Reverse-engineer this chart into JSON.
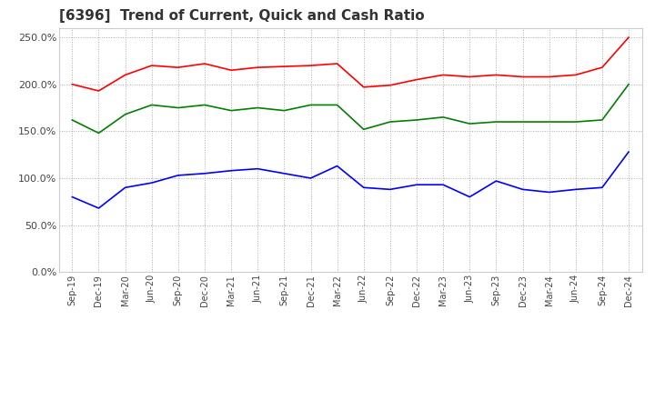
{
  "title": "[6396]  Trend of Current, Quick and Cash Ratio",
  "x_labels": [
    "Sep-19",
    "Dec-19",
    "Mar-20",
    "Jun-20",
    "Sep-20",
    "Dec-20",
    "Mar-21",
    "Jun-21",
    "Sep-21",
    "Dec-21",
    "Mar-22",
    "Jun-22",
    "Sep-22",
    "Dec-22",
    "Mar-23",
    "Jun-23",
    "Sep-23",
    "Dec-23",
    "Mar-24",
    "Jun-24",
    "Sep-24",
    "Dec-24"
  ],
  "current_ratio": [
    2.0,
    1.93,
    2.1,
    2.2,
    2.18,
    2.22,
    2.15,
    2.18,
    2.19,
    2.2,
    2.22,
    1.97,
    1.99,
    2.05,
    2.1,
    2.08,
    2.1,
    2.08,
    2.08,
    2.1,
    2.18,
    2.5
  ],
  "quick_ratio": [
    1.62,
    1.48,
    1.68,
    1.78,
    1.75,
    1.78,
    1.72,
    1.75,
    1.72,
    1.78,
    1.78,
    1.52,
    1.6,
    1.62,
    1.65,
    1.58,
    1.6,
    1.6,
    1.6,
    1.6,
    1.62,
    2.0
  ],
  "cash_ratio": [
    0.8,
    0.68,
    0.9,
    0.95,
    1.03,
    1.05,
    1.08,
    1.1,
    1.05,
    1.0,
    1.13,
    0.9,
    0.88,
    0.93,
    0.93,
    0.8,
    0.97,
    0.88,
    0.85,
    0.88,
    0.9,
    1.28
  ],
  "current_color": "#ff0000",
  "quick_color": "#008000",
  "cash_color": "#0000ff",
  "ylim": [
    0.0,
    2.6
  ],
  "yticks": [
    0.0,
    0.5,
    1.0,
    1.5,
    2.0,
    2.5
  ],
  "background_color": "#ffffff",
  "grid_color": "#aaaaaa"
}
